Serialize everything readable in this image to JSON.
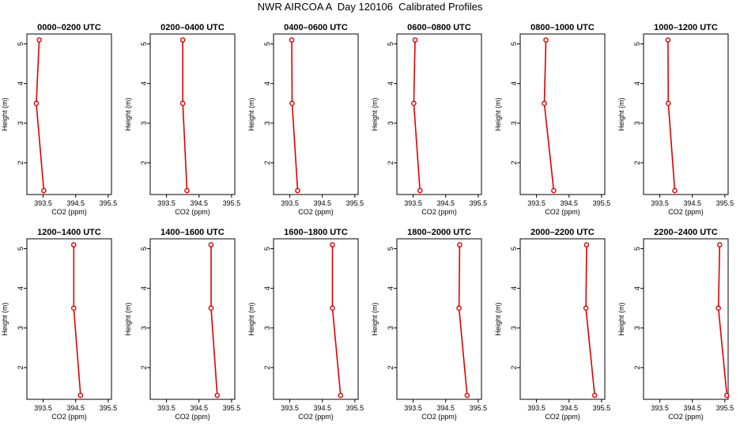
{
  "figure": {
    "title": "NWR AIRCOA A  Day 120106  Calibrated Profiles",
    "line_color": "#e00000"
  },
  "chart_data": [
    {
      "type": "line",
      "title": "0000–0200 UTC",
      "xlabel": "CO2 (ppm)",
      "ylabel": "Height (m)",
      "xlim": [
        393.0,
        395.6
      ],
      "ylim": [
        1.2,
        5.25
      ],
      "xticks": [
        "393.5",
        "394.5",
        "395.5"
      ],
      "yticks": [
        "2",
        "3",
        "4",
        "5"
      ],
      "series": [
        {
          "x": [
            393.38,
            393.29,
            393.52
          ],
          "y": [
            5.1,
            3.5,
            1.3
          ]
        }
      ]
    },
    {
      "type": "line",
      "title": "0200–0400 UTC",
      "xlabel": "CO2 (ppm)",
      "ylabel": "Height (m)",
      "xlim": [
        393.0,
        395.6
      ],
      "ylim": [
        1.2,
        5.25
      ],
      "xticks": [
        "393.5",
        "394.5",
        "395.5"
      ],
      "yticks": [
        "2",
        "3",
        "4",
        "5"
      ],
      "series": [
        {
          "x": [
            394.0,
            394.0,
            394.13
          ],
          "y": [
            5.1,
            3.5,
            1.3
          ]
        }
      ]
    },
    {
      "type": "line",
      "title": "0400–0600 UTC",
      "xlabel": "CO2 (ppm)",
      "ylabel": "Height (m)",
      "xlim": [
        393.0,
        395.6
      ],
      "ylim": [
        1.2,
        5.25
      ],
      "xticks": [
        "393.5",
        "394.5",
        "395.5"
      ],
      "yticks": [
        "2",
        "3",
        "4",
        "5"
      ],
      "series": [
        {
          "x": [
            393.56,
            393.57,
            393.74
          ],
          "y": [
            5.1,
            3.5,
            1.3
          ]
        }
      ]
    },
    {
      "type": "line",
      "title": "0600–0800 UTC",
      "xlabel": "CO2 (ppm)",
      "ylabel": "Height (m)",
      "xlim": [
        393.0,
        395.6
      ],
      "ylim": [
        1.2,
        5.25
      ],
      "xticks": [
        "393.5",
        "394.5",
        "395.5"
      ],
      "yticks": [
        "2",
        "3",
        "4",
        "5"
      ],
      "series": [
        {
          "x": [
            393.56,
            393.52,
            393.71
          ],
          "y": [
            5.1,
            3.5,
            1.3
          ]
        }
      ]
    },
    {
      "type": "line",
      "title": "0800–1000 UTC",
      "xlabel": "CO2 (ppm)",
      "ylabel": "Height (m)",
      "xlim": [
        393.0,
        395.6
      ],
      "ylim": [
        1.2,
        5.25
      ],
      "xticks": [
        "393.5",
        "394.5",
        "395.5"
      ],
      "yticks": [
        "2",
        "3",
        "4",
        "5"
      ],
      "series": [
        {
          "x": [
            393.79,
            393.74,
            394.03
          ],
          "y": [
            5.1,
            3.5,
            1.3
          ]
        }
      ]
    },
    {
      "type": "line",
      "title": "1000–1200 UTC",
      "xlabel": "CO2 (ppm)",
      "ylabel": "Height (m)",
      "xlim": [
        393.0,
        395.6
      ],
      "ylim": [
        1.2,
        5.25
      ],
      "xticks": [
        "393.5",
        "394.5",
        "395.5"
      ],
      "yticks": [
        "2",
        "3",
        "4",
        "5"
      ],
      "series": [
        {
          "x": [
            393.75,
            393.76,
            393.96
          ],
          "y": [
            5.1,
            3.5,
            1.3
          ]
        }
      ]
    },
    {
      "type": "line",
      "title": "1200–1400 UTC",
      "xlabel": "CO2 (ppm)",
      "ylabel": "Height (m)",
      "xlim": [
        393.0,
        395.6
      ],
      "ylim": [
        1.2,
        5.25
      ],
      "xticks": [
        "393.5",
        "394.5",
        "395.5"
      ],
      "yticks": [
        "2",
        "3",
        "4",
        "5"
      ],
      "series": [
        {
          "x": [
            394.44,
            394.44,
            394.65
          ],
          "y": [
            5.1,
            3.5,
            1.3
          ]
        }
      ]
    },
    {
      "type": "line",
      "title": "1400–1600 UTC",
      "xlabel": "CO2 (ppm)",
      "ylabel": "Height (m)",
      "xlim": [
        393.0,
        395.6
      ],
      "ylim": [
        1.2,
        5.25
      ],
      "xticks": [
        "393.5",
        "394.5",
        "395.5"
      ],
      "yticks": [
        "2",
        "3",
        "4",
        "5"
      ],
      "series": [
        {
          "x": [
            394.87,
            394.87,
            395.06
          ],
          "y": [
            5.1,
            3.5,
            1.3
          ]
        }
      ]
    },
    {
      "type": "line",
      "title": "1600–1800 UTC",
      "xlabel": "CO2 (ppm)",
      "ylabel": "Height (m)",
      "xlim": [
        393.0,
        395.6
      ],
      "ylim": [
        1.2,
        5.25
      ],
      "xticks": [
        "393.5",
        "394.5",
        "395.5"
      ],
      "yticks": [
        "2",
        "3",
        "4",
        "5"
      ],
      "series": [
        {
          "x": [
            394.81,
            394.81,
            395.06
          ],
          "y": [
            5.1,
            3.5,
            1.3
          ]
        }
      ]
    },
    {
      "type": "line",
      "title": "1800–2000 UTC",
      "xlabel": "CO2 (ppm)",
      "ylabel": "Height (m)",
      "xlim": [
        393.0,
        395.6
      ],
      "ylim": [
        1.2,
        5.25
      ],
      "xticks": [
        "393.5",
        "394.5",
        "395.5"
      ],
      "yticks": [
        "2",
        "3",
        "4",
        "5"
      ],
      "series": [
        {
          "x": [
            394.93,
            394.91,
            395.16
          ],
          "y": [
            5.1,
            3.5,
            1.3
          ]
        }
      ]
    },
    {
      "type": "line",
      "title": "2000–2200 UTC",
      "xlabel": "CO2 (ppm)",
      "ylabel": "Height (m)",
      "xlim": [
        393.0,
        395.6
      ],
      "ylim": [
        1.2,
        5.25
      ],
      "xticks": [
        "393.5",
        "394.5",
        "395.5"
      ],
      "yticks": [
        "2",
        "3",
        "4",
        "5"
      ],
      "series": [
        {
          "x": [
            395.04,
            395.02,
            395.29
          ],
          "y": [
            5.1,
            3.5,
            1.3
          ]
        }
      ]
    },
    {
      "type": "line",
      "title": "2200–2400 UTC",
      "xlabel": "CO2 (ppm)",
      "ylabel": "Height (m)",
      "xlim": [
        393.0,
        395.6
      ],
      "ylim": [
        1.2,
        5.25
      ],
      "xticks": [
        "393.5",
        "394.5",
        "395.5"
      ],
      "yticks": [
        "2",
        "3",
        "4",
        "5"
      ],
      "series": [
        {
          "x": [
            395.34,
            395.3,
            395.56
          ],
          "y": [
            5.1,
            3.5,
            1.3
          ]
        }
      ]
    }
  ]
}
